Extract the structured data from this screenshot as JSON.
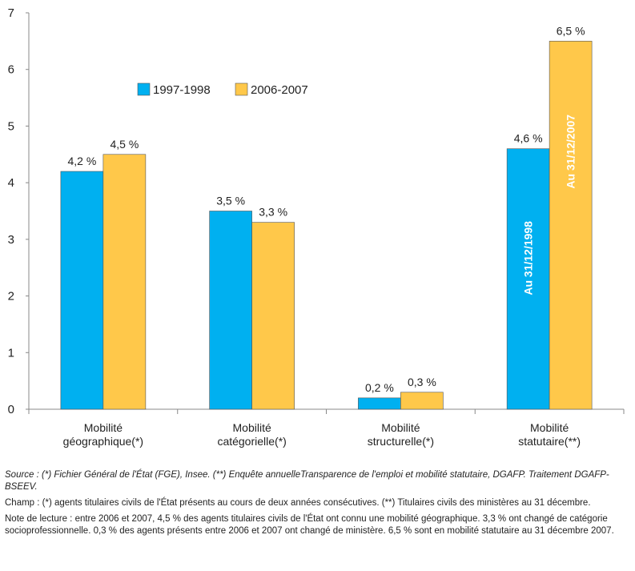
{
  "chart_data": {
    "type": "bar",
    "categories": [
      [
        "Mobilité",
        "géographique(*)"
      ],
      [
        "Mobilité",
        "catégorielle(*)"
      ],
      [
        "Mobilité",
        "structurelle(*)"
      ],
      [
        "Mobilité",
        "statutaire(**)"
      ]
    ],
    "series": [
      {
        "name": "1997-1998",
        "color": "#00b0f0",
        "values": [
          4.2,
          3.5,
          0.2,
          4.6
        ],
        "labels": [
          "4,2 %",
          "3,5 %",
          "0,2 %",
          "4,6 %"
        ]
      },
      {
        "name": "2006-2007",
        "color": "#ffc84a",
        "values": [
          4.5,
          3.3,
          0.3,
          6.5
        ],
        "labels": [
          "4,5 %",
          "3,3 %",
          "0,3 %",
          "6,5 %"
        ]
      }
    ],
    "inner_bar_labels": [
      "Au 31/12/1998",
      "Au 31/12/2007"
    ],
    "ylim": [
      0,
      7
    ],
    "yticks": [
      "0",
      "1",
      "2",
      "3",
      "4",
      "5",
      "6",
      "7"
    ],
    "legend_position": "top-center",
    "grid": false
  },
  "notes": {
    "source": "Source : (*) Fichier Général de l'État (FGE), Insee. (**) Enquête annuelleTransparence de l'emploi et mobilité statutaire, DGAFP. Traitement DGAFP-BSEEV.",
    "champ": "Champ : (*) agents titulaires civils de l'État présents au cours de deux années consécutives. (**) Titulaires civils des ministères au 31 décembre.",
    "lecture": "Note de lecture : entre 2006 et 2007, 4,5 % des agents titulaires civils de l'État ont connu une mobilité géographique. 3,3 % ont changé de catégorie socioprofessionnelle. 0,3 % des agents présents entre 2006 et 2007 ont changé de ministère.  6,5 % sont en mobilité statutaire au 31 décembre 2007."
  }
}
